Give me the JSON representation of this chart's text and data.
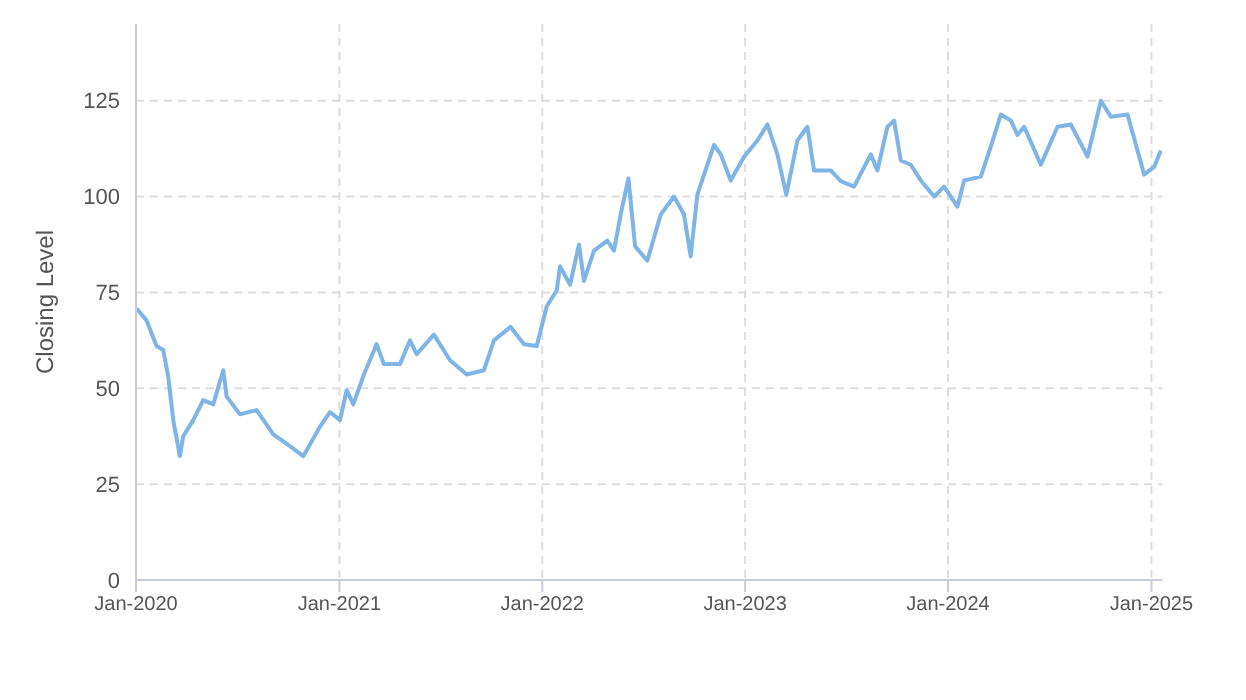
{
  "chart_data": {
    "type": "line",
    "ylabel": "Closing Level",
    "xlim": [
      "2020-01-01",
      "2025-01-20"
    ],
    "xticks": [
      {
        "value": "2020-01-01",
        "label": "Jan-2020"
      },
      {
        "value": "2021-01-01",
        "label": "Jan-2021"
      },
      {
        "value": "2022-01-01",
        "label": "Jan-2022"
      },
      {
        "value": "2023-01-01",
        "label": "Jan-2023"
      },
      {
        "value": "2024-01-01",
        "label": "Jan-2024"
      },
      {
        "value": "2025-01-01",
        "label": "Jan-2025"
      }
    ],
    "ylim": [
      0,
      145
    ],
    "yticks": [
      0,
      25,
      50,
      75,
      100,
      125
    ],
    "grid": true,
    "marker": "none",
    "line_style": "solid",
    "x": [
      "2020-01-02",
      "2020-01-20",
      "2020-02-07",
      "2020-02-19",
      "2020-02-28",
      "2020-03-08",
      "2020-03-20",
      "2020-03-26",
      "2020-04-13",
      "2020-05-01",
      "2020-05-19",
      "2020-06-06",
      "2020-06-12",
      "2020-07-06",
      "2020-08-05",
      "2020-09-04",
      "2020-10-04",
      "2020-10-28",
      "2020-11-27",
      "2020-12-15",
      "2021-01-02",
      "2021-01-14",
      "2021-01-26",
      "2021-02-14",
      "2021-03-09",
      "2021-03-22",
      "2021-04-20",
      "2021-05-08",
      "2021-05-20",
      "2021-06-20",
      "2021-07-19",
      "2021-08-18",
      "2021-09-18",
      "2021-10-06",
      "2021-11-05",
      "2021-11-29",
      "2021-12-22",
      "2022-01-09",
      "2022-01-27",
      "2022-02-02",
      "2022-02-20",
      "2022-03-08",
      "2022-03-17",
      "2022-04-04",
      "2022-04-28",
      "2022-05-10",
      "2022-05-22",
      "2022-06-05",
      "2022-06-17",
      "2022-07-09",
      "2022-08-02",
      "2022-08-26",
      "2022-09-13",
      "2022-09-25",
      "2022-10-07",
      "2022-11-06",
      "2022-11-18",
      "2022-12-06",
      "2022-12-30",
      "2023-01-23",
      "2023-02-10",
      "2023-02-28",
      "2023-03-16",
      "2023-04-05",
      "2023-04-23",
      "2023-05-05",
      "2023-06-04",
      "2023-06-22",
      "2023-07-16",
      "2023-08-15",
      "2023-08-27",
      "2023-09-14",
      "2023-09-26",
      "2023-10-08",
      "2023-10-26",
      "2023-11-13",
      "2023-12-07",
      "2023-12-25",
      "2024-01-18",
      "2024-01-30",
      "2024-02-29",
      "2024-03-18",
      "2024-04-05",
      "2024-04-23",
      "2024-05-05",
      "2024-05-17",
      "2024-06-16",
      "2024-07-16",
      "2024-08-09",
      "2024-09-08",
      "2024-10-02",
      "2024-10-20",
      "2024-11-19",
      "2024-12-19",
      "2025-01-06",
      "2025-01-18"
    ],
    "series": [
      {
        "color": "#7eb4e6",
        "values": [
          70.8,
          67.7,
          61,
          60,
          53,
          41.7,
          32.3,
          37.5,
          41.7,
          46.9,
          45.8,
          54.7,
          47.9,
          43.2,
          44.3,
          38,
          34.9,
          32.3,
          40,
          43.8,
          41.7,
          49.5,
          45.8,
          53.6,
          61.5,
          56.3,
          56.3,
          62.5,
          58.9,
          64,
          57.3,
          53.6,
          54.7,
          62.5,
          66,
          61.5,
          61,
          71.4,
          75.5,
          81.8,
          77,
          87.5,
          78,
          85.9,
          88.5,
          85.9,
          95.3,
          104.7,
          87,
          83.3,
          95.3,
          100,
          95.3,
          84.4,
          100.5,
          113.5,
          111,
          104.2,
          110.4,
          114.6,
          118.8,
          111,
          100.5,
          114.6,
          118.2,
          106.8,
          106.8,
          104,
          102.6,
          111,
          106.8,
          118.2,
          119.8,
          109.4,
          108.3,
          104.2,
          100,
          102.6,
          97.4,
          104.2,
          105.2,
          113,
          121.4,
          119.8,
          116.1,
          118.2,
          108.3,
          118.2,
          118.8,
          110.4,
          125,
          120.8,
          121.4,
          105.7,
          107.8,
          112
        ]
      }
    ]
  }
}
